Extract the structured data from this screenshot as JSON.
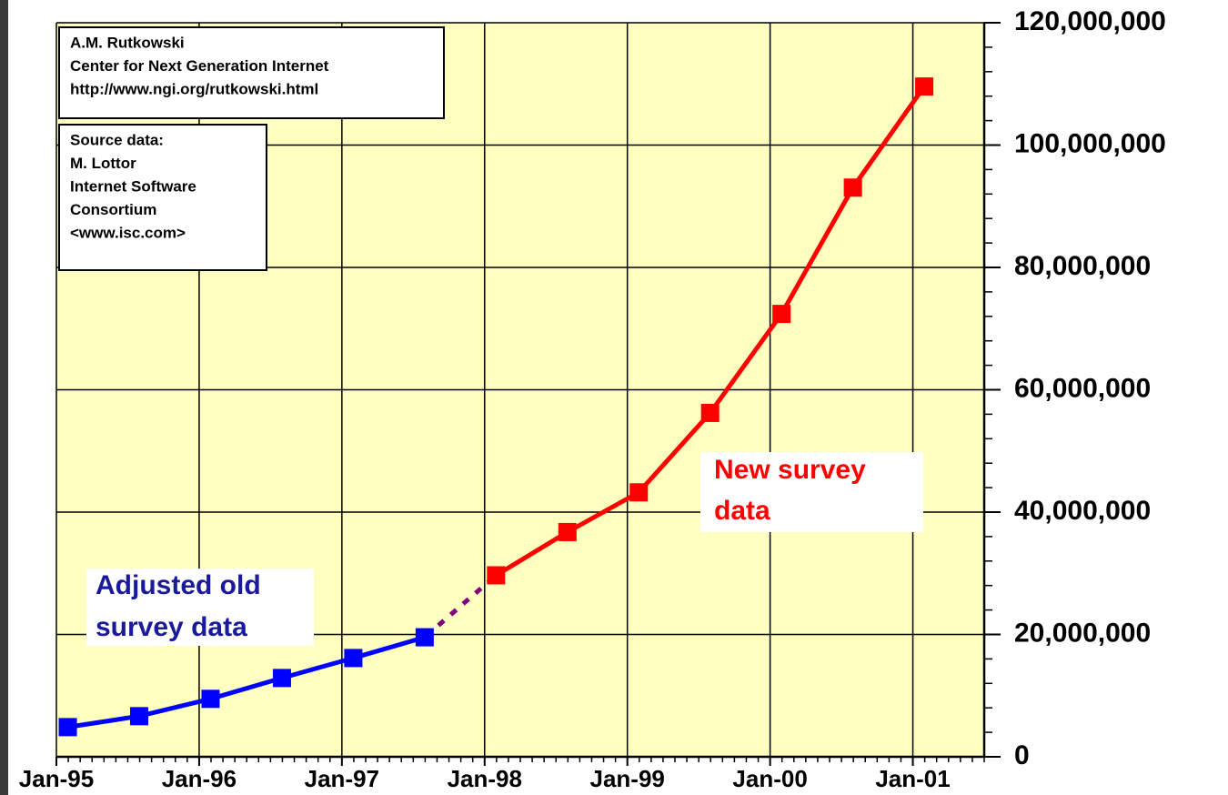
{
  "chart_data": {
    "type": "line",
    "xlim": [
      1995,
      2001.5
    ],
    "xticks": [
      {
        "value": 1995,
        "label": "Jan-95"
      },
      {
        "value": 1996,
        "label": "Jan-96"
      },
      {
        "value": 1997,
        "label": "Jan-97"
      },
      {
        "value": 1998,
        "label": "Jan-98"
      },
      {
        "value": 1999,
        "label": "Jan-99"
      },
      {
        "value": 2000,
        "label": "Jan-00"
      },
      {
        "value": 2001,
        "label": "Jan-01"
      }
    ],
    "ylim": [
      0,
      120000000
    ],
    "yticks": [
      0,
      {
        "value": 20000000,
        "label": "20,000,000"
      },
      {
        "value": 40000000,
        "label": "40,000,000"
      },
      {
        "value": 60000000,
        "label": "60,000,000"
      },
      {
        "value": 80000000,
        "label": "80,000,000"
      },
      {
        "value": 100000000,
        "label": "100,000,000"
      },
      {
        "value": 120000000,
        "label": "120,000,000"
      }
    ],
    "grid": true,
    "connector_color": "#800080",
    "series": [
      {
        "name": "Adjusted old survey data",
        "color": "#0000ff",
        "label_color": "#1a1a9c",
        "x": [
          1995.08,
          1995.58,
          1996.08,
          1996.58,
          1997.08,
          1997.58
        ],
        "values": [
          4852000,
          6642000,
          9472000,
          12881000,
          16146000,
          19540000
        ]
      },
      {
        "name": "New survey data",
        "color": "#ff0000",
        "label_color": "#ff0000",
        "x": [
          1998.08,
          1998.58,
          1999.08,
          1999.58,
          2000.08,
          2000.58,
          2001.08
        ],
        "values": [
          29670000,
          36739000,
          43230000,
          56218000,
          72398000,
          93047000,
          109574000
        ]
      }
    ],
    "annotations": [
      {
        "lines": [
          "A.M. Rutkowski",
          "Center for Next Generation Internet",
          "http://www.ngi.org/rutkowski.html"
        ]
      },
      {
        "lines": [
          "Source data:",
          "M. Lottor",
          "Internet Software",
          "Consortium",
          "<www.isc.com>"
        ]
      }
    ]
  }
}
